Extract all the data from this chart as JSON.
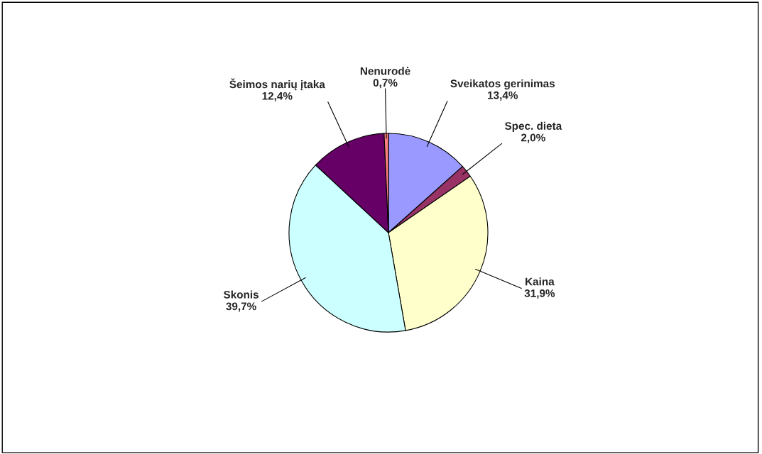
{
  "chart_data": {
    "type": "pie",
    "categories": [
      "Sveikatos gerinimas",
      "Spec. dieta",
      "Kaina",
      "Skonis",
      "Šeimos narių įtaka",
      "Nenurodė"
    ],
    "values": [
      13.4,
      2.0,
      31.9,
      39.7,
      12.4,
      0.7
    ],
    "colors": [
      "#9999ff",
      "#993366",
      "#ffffcc",
      "#ccffff",
      "#660066",
      "#ff8080"
    ],
    "value_labels": [
      "13,4%",
      "2,0%",
      "31,9%",
      "39,7%",
      "12,4%",
      "0,7%"
    ]
  }
}
